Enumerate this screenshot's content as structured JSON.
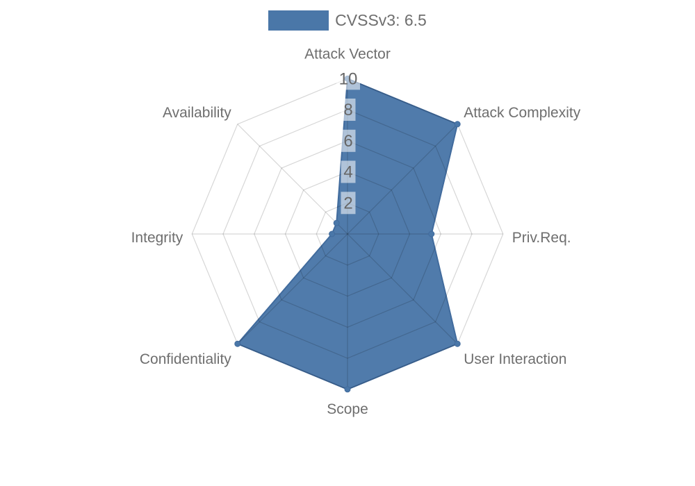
{
  "legend": {
    "swatch_color": "#4a77a8",
    "label": "CVSSv3: 6.5"
  },
  "chart_data": {
    "type": "radar",
    "title": "CVSSv3: 6.5",
    "categories": [
      "Attack Vector",
      "Attack Complexity",
      "Priv.Req.",
      "User Interaction",
      "Scope",
      "Confidentiality",
      "Integrity",
      "Availability"
    ],
    "series": [
      {
        "name": "CVSSv3: 6.5",
        "color": "#4a77a8",
        "values": [
          10,
          10,
          5.4,
          10,
          10,
          10,
          1,
          1
        ]
      }
    ],
    "ticks": [
      2,
      4,
      6,
      8,
      10
    ],
    "rmax": 10,
    "grid": true,
    "grid_shape": "polygon",
    "legend_position": "top",
    "colors": {
      "fill": "#4a77a8",
      "stroke": "#416b9d",
      "marker": "#4a77a8",
      "grid_line": "rgba(0,0,0,0.16)",
      "axis_label": "#6e6e6e",
      "tick_label": "#666666",
      "tick_box": "rgba(255,255,255,0.55)"
    }
  }
}
